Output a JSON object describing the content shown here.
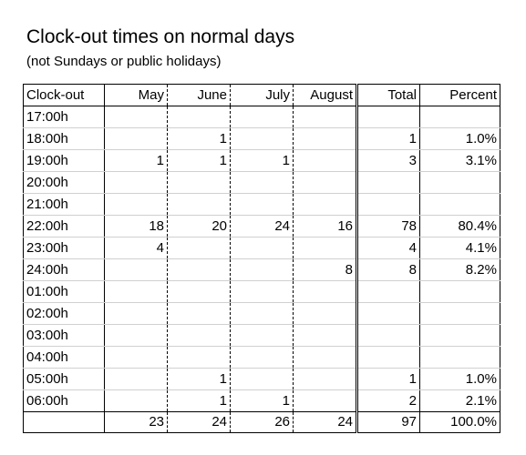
{
  "title": "Clock-out times on normal days",
  "subtitle": "(not Sundays or public holidays)",
  "table": {
    "headers": [
      "Clock-out",
      "May",
      "June",
      "July",
      "August",
      "Total",
      "Percent"
    ],
    "rows": [
      [
        "17:00h",
        "",
        "",
        "",
        "",
        "",
        ""
      ],
      [
        "18:00h",
        "",
        "1",
        "",
        "",
        "1",
        "1.0%"
      ],
      [
        "19:00h",
        "1",
        "1",
        "1",
        "",
        "3",
        "3.1%"
      ],
      [
        "20:00h",
        "",
        "",
        "",
        "",
        "",
        ""
      ],
      [
        "21:00h",
        "",
        "",
        "",
        "",
        "",
        ""
      ],
      [
        "22:00h",
        "18",
        "20",
        "24",
        "16",
        "78",
        "80.4%"
      ],
      [
        "23:00h",
        "4",
        "",
        "",
        "",
        "4",
        "4.1%"
      ],
      [
        "24:00h",
        "",
        "",
        "",
        "8",
        "8",
        "8.2%"
      ],
      [
        "01:00h",
        "",
        "",
        "",
        "",
        "",
        ""
      ],
      [
        "02:00h",
        "",
        "",
        "",
        "",
        "",
        ""
      ],
      [
        "03:00h",
        "",
        "",
        "",
        "",
        "",
        ""
      ],
      [
        "04:00h",
        "",
        "",
        "",
        "",
        "",
        ""
      ],
      [
        "05:00h",
        "",
        "1",
        "",
        "",
        "1",
        "1.0%"
      ],
      [
        "06:00h",
        "",
        "1",
        "1",
        "",
        "2",
        "2.1%"
      ]
    ],
    "totals": [
      "",
      "23",
      "24",
      "26",
      "24",
      "97",
      "100.0%"
    ]
  }
}
